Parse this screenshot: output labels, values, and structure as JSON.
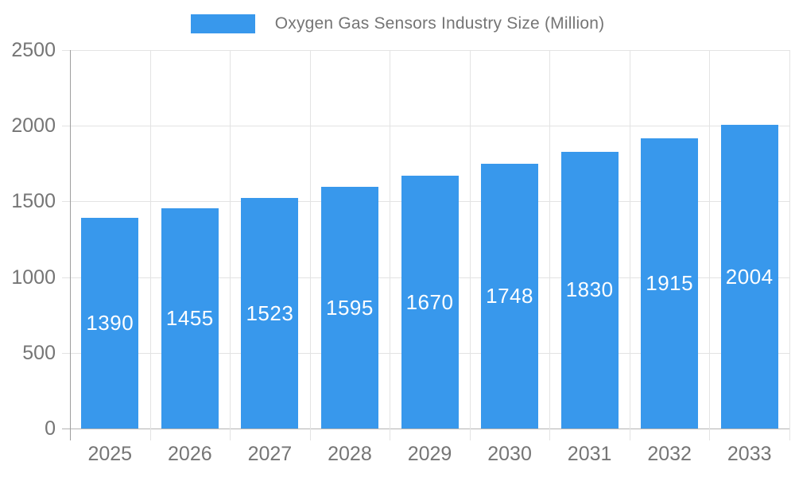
{
  "legend": {
    "label": "Oxygen Gas Sensors Industry Size (Million)"
  },
  "chart_data": {
    "type": "bar",
    "title": "Oxygen Gas Sensors Industry Size (Million)",
    "categories": [
      "2025",
      "2026",
      "2027",
      "2028",
      "2029",
      "2030",
      "2031",
      "2032",
      "2033"
    ],
    "values": [
      1390,
      1455,
      1523,
      1595,
      1670,
      1748,
      1830,
      1915,
      2004
    ],
    "xlabel": "",
    "ylabel": "",
    "ylim": [
      0,
      2500
    ],
    "yticks": [
      0,
      500,
      1000,
      1500,
      2000,
      2500
    ],
    "grid": true,
    "legend_position": "top",
    "value_labels": "inside-center",
    "colors": {
      "bar": "#3898ec",
      "value_label": "#ffffff",
      "axis_text": "#757575",
      "gridline": "#e3e3e3",
      "baseline": "#b3b3b3",
      "axis_line": "#9e9e9e"
    }
  }
}
